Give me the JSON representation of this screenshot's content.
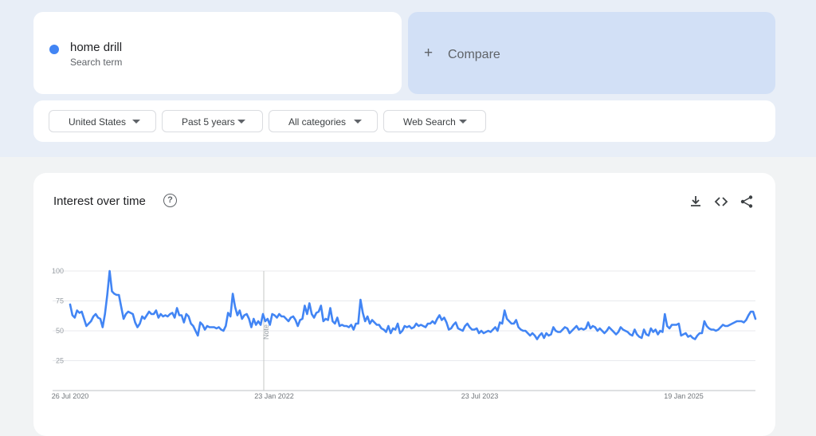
{
  "search_term": {
    "label": "home drill",
    "sublabel": "Search term",
    "color": "#4285f4"
  },
  "compare": {
    "label": "Compare"
  },
  "filters": [
    {
      "label": "United States"
    },
    {
      "label": "Past 5 years"
    },
    {
      "label": "All categories"
    },
    {
      "label": "Web Search"
    }
  ],
  "interest_card": {
    "title": "Interest over time",
    "icons": [
      "download-icon",
      "embed-code-icon",
      "share-icon"
    ]
  },
  "chart_data": {
    "type": "line",
    "x_tick_labels": [
      "26 Jul 2020",
      "23 Jan 2022",
      "23 Jul 2023",
      "19 Jan 2025"
    ],
    "y_tick_labels": [
      "100",
      "75",
      "50",
      "25"
    ],
    "ylim": [
      0,
      100
    ],
    "grid": true,
    "annotation_label": "Note",
    "series": [
      {
        "color": "#4285f4",
        "values": [
          72,
          63,
          61,
          67,
          65,
          66,
          60,
          54,
          56,
          58,
          62,
          64,
          61,
          60,
          53,
          64,
          80,
          100,
          83,
          81,
          80,
          80,
          70,
          60,
          64,
          66,
          65,
          64,
          57,
          53,
          56,
          62,
          60,
          63,
          66,
          64,
          64,
          67,
          61,
          64,
          62,
          63,
          62,
          64,
          65,
          61,
          69,
          63,
          63,
          57,
          64,
          62,
          56,
          54,
          50,
          46,
          57,
          55,
          51,
          54,
          53,
          53,
          53,
          52,
          53,
          51,
          50,
          54,
          65,
          62,
          81,
          70,
          63,
          67,
          60,
          63,
          64,
          60,
          53,
          60,
          55,
          58,
          55,
          64,
          58,
          60,
          55,
          64,
          63,
          61,
          64,
          62,
          62,
          60,
          58,
          61,
          62,
          59,
          54,
          59,
          60,
          71,
          64,
          73,
          64,
          61,
          65,
          66,
          71,
          58,
          60,
          59,
          69,
          58,
          56,
          61,
          54,
          55,
          54,
          54,
          53,
          55,
          51,
          56,
          56,
          76,
          65,
          58,
          62,
          56,
          59,
          57,
          55,
          55,
          52,
          51,
          49,
          54,
          48,
          52,
          51,
          56,
          48,
          50,
          54,
          53,
          54,
          52,
          53,
          56,
          54,
          55,
          54,
          53,
          56,
          56,
          58,
          56,
          60,
          63,
          59,
          61,
          57,
          51,
          52,
          55,
          57,
          52,
          51,
          50,
          54,
          56,
          53,
          51,
          51,
          52,
          48,
          50,
          48,
          49,
          50,
          49,
          51,
          53,
          50,
          57,
          56,
          67,
          60,
          58,
          56,
          56,
          59,
          53,
          51,
          50,
          50,
          48,
          46,
          48,
          46,
          43,
          46,
          48,
          44,
          48,
          46,
          47,
          53,
          50,
          49,
          49,
          51,
          53,
          52,
          48,
          50,
          52,
          54,
          51,
          52,
          51,
          52,
          57,
          52,
          54,
          53,
          50,
          52,
          50,
          48,
          50,
          53,
          51,
          49,
          47,
          49,
          53,
          51,
          50,
          49,
          47,
          46,
          51,
          47,
          45,
          44,
          51,
          47,
          46,
          52,
          49,
          51,
          47,
          50,
          49,
          64,
          54,
          52,
          55,
          55,
          55,
          56,
          46,
          47,
          48,
          45,
          46,
          44,
          43,
          46,
          48,
          48,
          58,
          54,
          52,
          51,
          51,
          50,
          51,
          53,
          55,
          54,
          54,
          55,
          56,
          57,
          58,
          58,
          58,
          57,
          59,
          63,
          66,
          66,
          60
        ]
      }
    ]
  }
}
